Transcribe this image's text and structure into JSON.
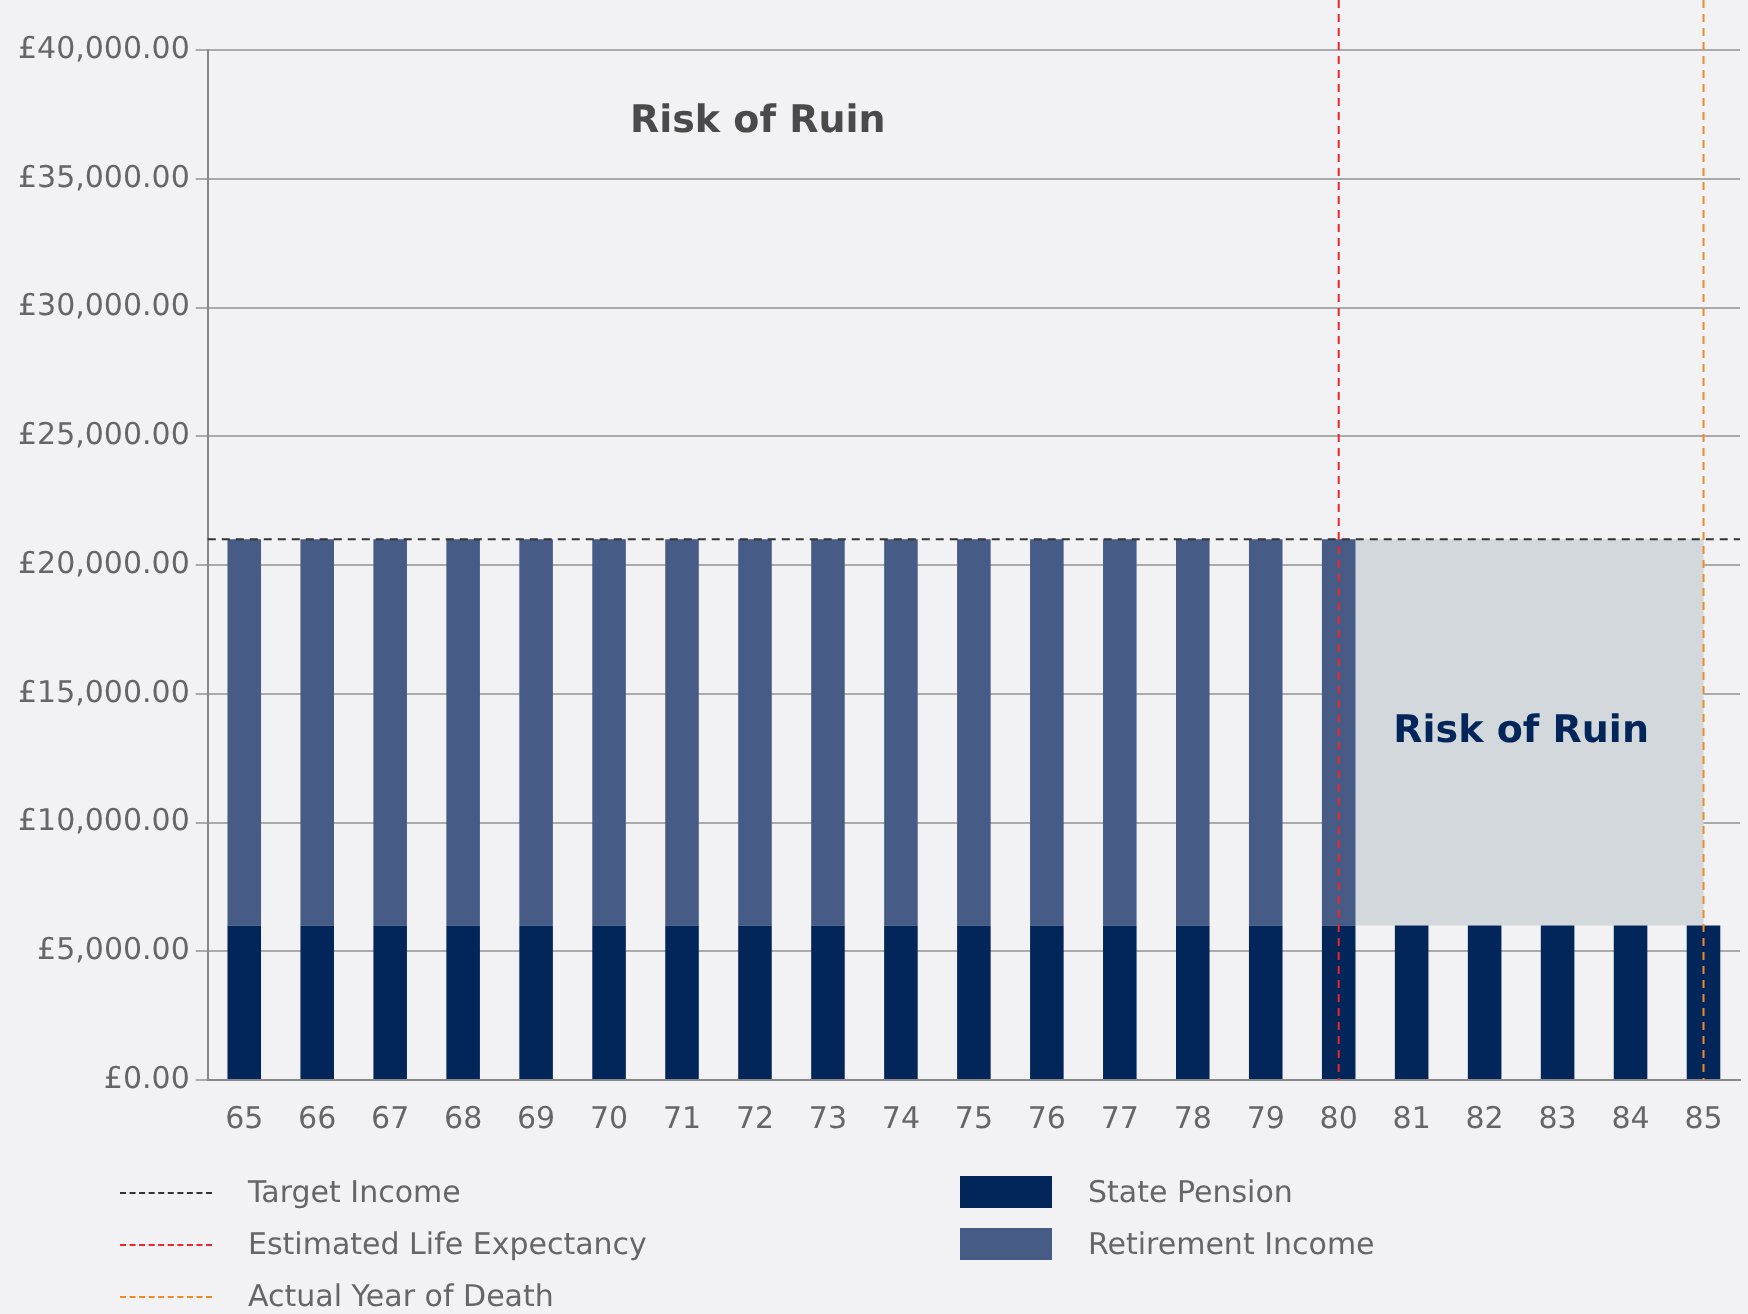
{
  "chart_data": {
    "type": "bar",
    "stacked": true,
    "categories": [
      "65",
      "66",
      "67",
      "68",
      "69",
      "70",
      "71",
      "72",
      "73",
      "74",
      "75",
      "76",
      "77",
      "78",
      "79",
      "80",
      "81",
      "82",
      "83",
      "84",
      "85"
    ],
    "series": [
      {
        "name": "State Pension",
        "color": "#03265a",
        "values": [
          6000,
          6000,
          6000,
          6000,
          6000,
          6000,
          6000,
          6000,
          6000,
          6000,
          6000,
          6000,
          6000,
          6000,
          6000,
          6000,
          6000,
          6000,
          6000,
          6000,
          6000
        ]
      },
      {
        "name": "Retirement Income",
        "color": "#475b87",
        "values": [
          15000,
          15000,
          15000,
          15000,
          15000,
          15000,
          15000,
          15000,
          15000,
          15000,
          15000,
          15000,
          15000,
          15000,
          15000,
          15000,
          null,
          null,
          null,
          null,
          null
        ]
      }
    ],
    "ylim": [
      0,
      40000
    ],
    "yticks": [
      {
        "value": 0,
        "label": "£0.00"
      },
      {
        "value": 5000,
        "label": "£5,000.00"
      },
      {
        "value": 10000,
        "label": "£10,000.00"
      },
      {
        "value": 15000,
        "label": "£15,000.00"
      },
      {
        "value": 20000,
        "label": "£20,000.00"
      },
      {
        "value": 25000,
        "label": "£25,000.00"
      },
      {
        "value": 30000,
        "label": "£30,000.00"
      },
      {
        "value": 35000,
        "label": "£35,000.00"
      },
      {
        "value": 40000,
        "label": "£40,000.00"
      }
    ],
    "grid": "y",
    "legend": "bottom",
    "ref_lines": [
      {
        "axis": "y",
        "value": 21000,
        "label": "Target Income",
        "color": "#333333",
        "line_style": "dashed"
      },
      {
        "axis": "x",
        "value": "80",
        "label": "Estimated Life Expectancy",
        "color": "#e8262c",
        "line_style": "dashed"
      },
      {
        "axis": "x",
        "value": "85",
        "label": "Actual Year of Death",
        "color": "#f08a24",
        "line_style": "dashed"
      }
    ],
    "bands": [
      {
        "axis": "x",
        "from": "80",
        "to": "85",
        "label": "Risk of Ruin",
        "color": "#d3d8dd"
      }
    ],
    "annotations": [
      "Risk of Ruin"
    ]
  }
}
